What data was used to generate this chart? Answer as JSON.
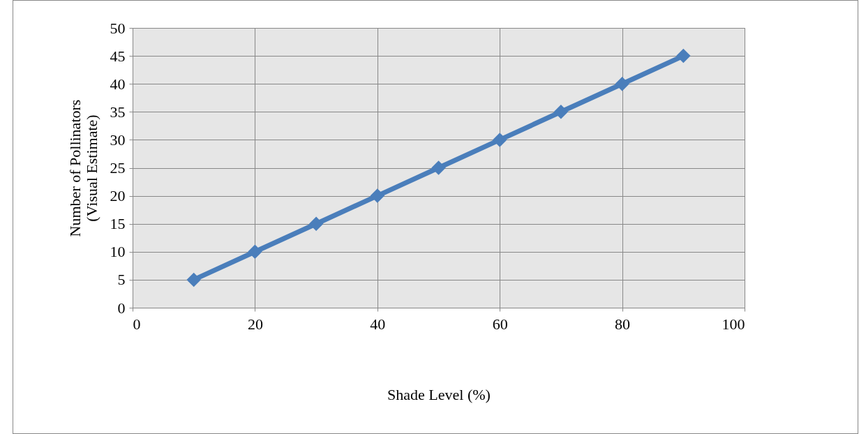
{
  "chart_data": {
    "type": "line",
    "xlabel": "Shade Level (%)",
    "ylabel": "Number of Pollinators\n(Visual Estimate)",
    "x": [
      10,
      20,
      30,
      40,
      50,
      60,
      70,
      80,
      90
    ],
    "series": [
      {
        "color": "#4a7ebb",
        "values": [
          5,
          10,
          15,
          20,
          25,
          30,
          35,
          40,
          45
        ]
      }
    ],
    "xlim": [
      0,
      100
    ],
    "xticks": [
      0,
      20,
      40,
      60,
      80,
      100
    ],
    "ylim": [
      0,
      50
    ],
    "yticks": [
      0,
      5,
      10,
      15,
      20,
      25,
      30,
      35,
      40,
      45,
      50
    ],
    "grid": true,
    "marker": "diamond",
    "line_style": "solid"
  }
}
